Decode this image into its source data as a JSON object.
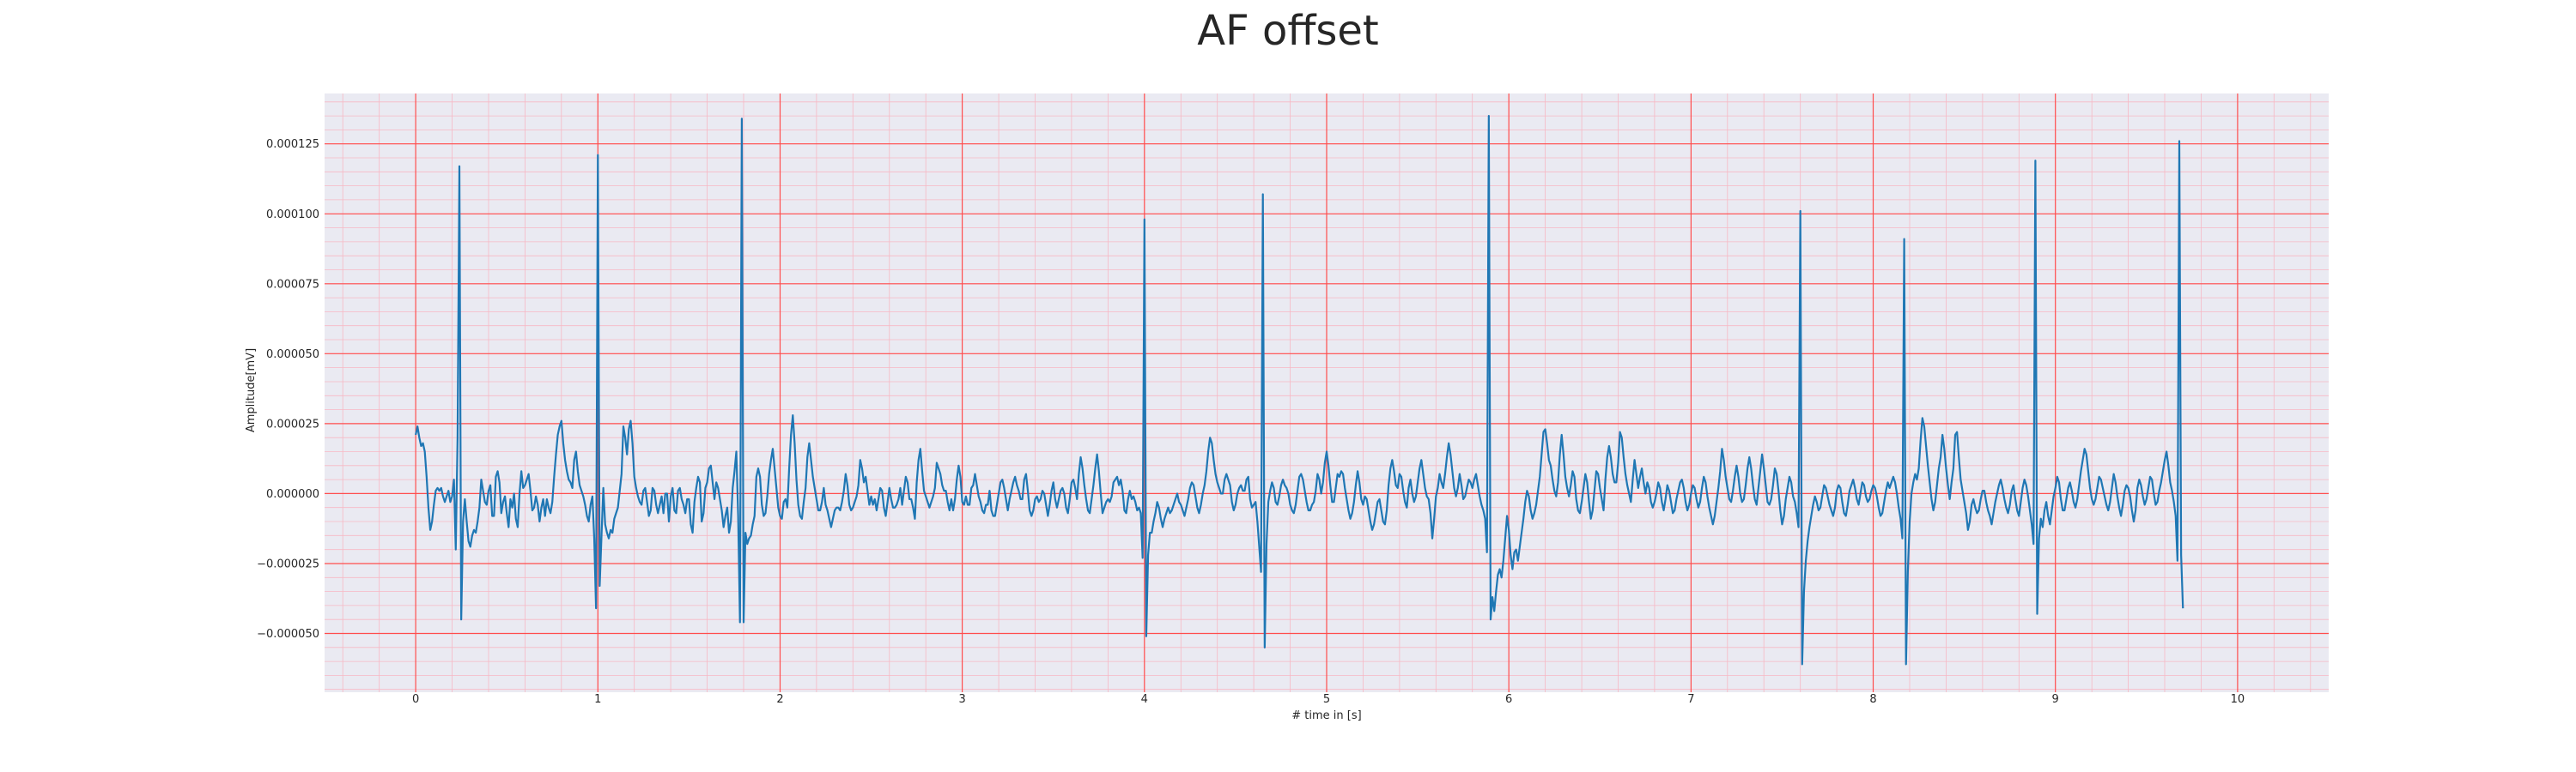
{
  "chart_data": {
    "type": "line",
    "title": "AF offset",
    "xlabel": "# time in [s]",
    "ylabel": "Amplitude[mV]",
    "xlim": [
      -0.5,
      10.5
    ],
    "ylim": [
      -7.1e-05,
      0.000143
    ],
    "x_ticks": [
      0,
      1,
      2,
      3,
      4,
      5,
      6,
      7,
      8,
      9,
      10
    ],
    "x_tick_labels": [
      "0",
      "1",
      "2",
      "3",
      "4",
      "5",
      "6",
      "7",
      "8",
      "9",
      "10"
    ],
    "y_ticks": [
      -5e-05,
      -2.5e-05,
      0.0,
      2.5e-05,
      5e-05,
      7.5e-05,
      0.0001,
      0.000125
    ],
    "y_tick_labels": [
      "−0.000050",
      "−0.000025",
      "0.000000",
      "0.000025",
      "0.000050",
      "0.000075",
      "0.000100",
      "0.000125"
    ],
    "grid": {
      "major": true,
      "minor": true,
      "major_x_step": 1.0,
      "minor_x_step": 0.2,
      "major_y_step": 2.5e-05,
      "minor_y_step": 5e-06
    },
    "colors": {
      "line": "#1f77b4",
      "plot_background": "#eaeaf2",
      "major_grid": "#ff4d4d",
      "minor_grid": "#f7b8c4"
    },
    "series": [
      {
        "sample_rate_hz": 100,
        "x_start": 0.0,
        "values": [
          2.1e-05,
          2.4e-05,
          2e-05,
          1.7e-05,
          1.8e-05,
          1.5e-05,
          6e-06,
          -5e-06,
          -1.3e-05,
          -1e-05,
          -4e-06,
          1e-06,
          2e-06,
          1e-06,
          2e-06,
          -1e-06,
          -3e-06,
          -1e-06,
          1e-06,
          -3e-06,
          -1e-06,
          5e-06,
          -2e-05,
          2e-05,
          0.000117,
          -4.5e-05,
          -1e-05,
          -2e-06,
          -1e-05,
          -1.7e-05,
          -1.9e-05,
          -1.5e-05,
          -1.3e-05,
          -1.4e-05,
          -1e-05,
          -5e-06,
          5e-06,
          1e-06,
          -3e-06,
          -4e-06,
          1e-06,
          3e-06,
          -8e-06,
          -8e-06,
          6e-06,
          8e-06,
          4e-06,
          -7e-06,
          -3e-06,
          -1e-06,
          -7e-06,
          -1.2e-05,
          -2e-06,
          -5e-06,
          0.0,
          -9e-06,
          -1.2e-05,
          0.0,
          8e-06,
          2e-06,
          3e-06,
          5e-06,
          7e-06,
          1e-06,
          -6e-06,
          -5e-06,
          -1e-06,
          -4e-06,
          -1e-05,
          -5e-06,
          -2e-06,
          -8e-06,
          -2e-06,
          -5e-06,
          -7e-06,
          -3e-06,
          6e-06,
          1.4e-05,
          2.1e-05,
          2.4e-05,
          2.6e-05,
          1.8e-05,
          1.2e-05,
          8e-06,
          5e-06,
          4e-06,
          2e-06,
          1.2e-05,
          1.5e-05,
          8e-06,
          3e-06,
          1e-06,
          -1e-06,
          -4e-06,
          -8e-06,
          -1e-05,
          -4e-06,
          -1e-06,
          -1.6e-05,
          -4.1e-05,
          0.000121,
          -3.3e-05,
          -1.5e-05,
          2e-06,
          -1.1e-05,
          -1.4e-05,
          -1.6e-05,
          -1.3e-05,
          -1.4e-05,
          -9e-06,
          -7e-06,
          -5e-06,
          1e-06,
          7e-06,
          2.4e-05,
          2e-05,
          1.4e-05,
          2.3e-05,
          2.6e-05,
          1.8e-05,
          6e-06,
          2e-06,
          -1e-06,
          -3e-06,
          -4e-06,
          1e-06,
          2e-06,
          -3e-06,
          -8e-06,
          -6e-06,
          2e-06,
          1e-06,
          -4e-06,
          -7e-06,
          -4e-06,
          -1e-06,
          -7e-06,
          0.0,
          0.0,
          -1e-05,
          -1e-06,
          2e-06,
          -6e-06,
          -7e-06,
          1e-06,
          2e-06,
          -2e-06,
          -4e-06,
          -7e-06,
          -2e-06,
          -2e-06,
          -1.1e-05,
          -1.4e-05,
          -3e-06,
          2e-06,
          6e-06,
          4e-06,
          -1e-05,
          -7e-06,
          2e-06,
          4e-06,
          9e-06,
          1e-05,
          4e-06,
          -2e-06,
          4e-06,
          2e-06,
          -2e-06,
          -6e-06,
          -1.2e-05,
          -8e-06,
          -5e-06,
          -1.4e-05,
          -1e-05,
          2e-06,
          8e-06,
          1.5e-05,
          -8e-06,
          -4.6e-05,
          0.000134,
          -4.6e-05,
          -1.4e-05,
          -1.8e-05,
          -1.6e-05,
          -1.5e-05,
          -1.1e-05,
          -8e-06,
          6e-06,
          9e-06,
          6e-06,
          -4e-06,
          -8e-06,
          -7e-06,
          -1e-06,
          7e-06,
          1.2e-05,
          1.6e-05,
          9e-06,
          2e-06,
          -5e-06,
          -8e-06,
          -9e-06,
          -3e-06,
          -2e-06,
          -5e-06,
          9e-06,
          2.1e-05,
          2.8e-05,
          1.8e-05,
          5e-06,
          -4e-06,
          -8e-06,
          -9e-06,
          -3e-06,
          2e-06,
          1.3e-05,
          1.8e-05,
          1.2e-05,
          6e-06,
          2e-06,
          -2e-06,
          -6e-06,
          -6e-06,
          -3e-06,
          2e-06,
          -4e-06,
          -6e-06,
          -9e-06,
          -1.2e-05,
          -9e-06,
          -6e-06,
          -5e-06,
          -5e-06,
          -6e-06,
          -3e-06,
          1e-06,
          7e-06,
          3e-06,
          -4e-06,
          -6e-06,
          -5e-06,
          -3e-06,
          -1e-06,
          3e-06,
          1.2e-05,
          9e-06,
          4e-06,
          6e-06,
          1e-06,
          -4e-06,
          -1e-06,
          -4e-06,
          -2e-06,
          -6e-06,
          -2e-06,
          2e-06,
          1e-06,
          -5e-06,
          -8e-06,
          -3e-06,
          2e-06,
          -2e-06,
          -5e-06,
          -5e-06,
          -4e-06,
          -2e-06,
          2e-06,
          -4e-06,
          1e-06,
          6e-06,
          4e-06,
          -2e-06,
          -2e-06,
          -5e-06,
          -9e-06,
          4e-06,
          1.2e-05,
          1.6e-05,
          8e-06,
          1e-06,
          -1e-06,
          -3e-06,
          -5e-06,
          -3e-06,
          -1e-06,
          2e-06,
          1.1e-05,
          9e-06,
          7e-06,
          3e-06,
          1e-06,
          1e-06,
          -3e-06,
          -6e-06,
          -2e-06,
          -6e-06,
          -2e-06,
          5e-06,
          1e-05,
          6e-06,
          -3e-06,
          -4e-06,
          -1e-06,
          -4e-06,
          -4e-06,
          2e-06,
          3e-06,
          7e-06,
          3e-06,
          -1e-06,
          -3e-06,
          -6e-06,
          -7e-06,
          -4e-06,
          -4e-06,
          1e-06,
          -6e-06,
          -8e-06,
          -8e-06,
          -4e-06,
          0.0,
          4e-06,
          5e-06,
          2e-06,
          -2e-06,
          -6e-06,
          -2e-06,
          1e-06,
          4e-06,
          6e-06,
          3e-06,
          1e-06,
          -2e-06,
          -2e-06,
          5e-06,
          7e-06,
          1e-06,
          -6e-06,
          -8e-06,
          -6e-06,
          -2e-06,
          -1e-06,
          -3e-06,
          -2e-06,
          1e-06,
          0.0,
          -4e-06,
          -8e-06,
          -4e-06,
          1e-06,
          4e-06,
          -2e-06,
          -5e-06,
          -2e-06,
          1e-06,
          2e-06,
          0.0,
          -5e-06,
          -7e-06,
          -2e-06,
          4e-06,
          5e-06,
          2e-06,
          -2e-06,
          7e-06,
          1.3e-05,
          9e-06,
          3e-06,
          -2e-06,
          -6e-06,
          -7e-06,
          -2e-06,
          3e-06,
          9e-06,
          1.4e-05,
          8e-06,
          0.0,
          -7e-06,
          -5e-06,
          -3e-06,
          -2e-06,
          -3e-06,
          -1e-06,
          4e-06,
          5e-06,
          6e-06,
          3e-06,
          5e-06,
          1e-06,
          -6e-06,
          -7e-06,
          -2e-06,
          1e-06,
          -2e-06,
          -1e-06,
          -3e-06,
          -6e-06,
          -5e-06,
          -7e-06,
          -2.3e-05,
          9.8e-05,
          -5.1e-05,
          -2.2e-05,
          -1.4e-05,
          -1.4e-05,
          -1e-05,
          -7e-06,
          -3e-06,
          -5e-06,
          -9e-06,
          -1.2e-05,
          -9e-06,
          -7e-06,
          -5e-06,
          -7e-06,
          -6e-06,
          -4e-06,
          -2e-06,
          0.0,
          -3e-06,
          -4e-06,
          -6e-06,
          -8e-06,
          -5e-06,
          -2e-06,
          2e-06,
          4e-06,
          3e-06,
          -1e-06,
          -5e-06,
          -7e-06,
          -4e-06,
          0.0,
          3e-06,
          8e-06,
          1.5e-05,
          2e-05,
          1.8e-05,
          1.2e-05,
          7e-06,
          4e-06,
          2e-06,
          0.0,
          0.0,
          5e-06,
          7e-06,
          5e-06,
          3e-06,
          -3e-06,
          -6e-06,
          -4e-06,
          0.0,
          2e-06,
          3e-06,
          1e-06,
          1e-06,
          5e-06,
          6e-06,
          -2e-06,
          -5e-06,
          -4e-06,
          -3e-06,
          -1e-05,
          -1.9e-05,
          -2.8e-05,
          0.000107,
          -5.5e-05,
          -1.8e-05,
          -3e-06,
          1e-06,
          4e-06,
          2e-06,
          -3e-06,
          -4e-06,
          -1e-06,
          3e-06,
          5e-06,
          3e-06,
          2e-06,
          0.0,
          -4e-06,
          -6e-06,
          -7e-06,
          -4e-06,
          1e-06,
          6e-06,
          7e-06,
          5e-06,
          1e-06,
          -3e-06,
          -6e-06,
          -6e-06,
          -4e-06,
          -3e-06,
          1e-06,
          7e-06,
          5e-06,
          0.0,
          4e-06,
          1.1e-05,
          1.5e-05,
          1e-05,
          3e-06,
          -3e-06,
          -3e-06,
          2e-06,
          7e-06,
          6e-06,
          8e-06,
          7e-06,
          2e-06,
          -2e-06,
          -6e-06,
          -9e-06,
          -7e-06,
          -3e-06,
          3e-06,
          8e-06,
          4e-06,
          -2e-06,
          -4e-06,
          -1e-06,
          -2e-06,
          -6e-06,
          -1e-05,
          -1.3e-05,
          -1.1e-05,
          -7e-06,
          -3e-06,
          -2e-06,
          -6e-06,
          -1e-05,
          -1.1e-05,
          -6e-06,
          3e-06,
          9e-06,
          1.2e-05,
          8e-06,
          3e-06,
          2e-06,
          7e-06,
          6e-06,
          1e-06,
          -3e-06,
          -5e-06,
          2e-06,
          5e-06,
          0.0,
          -3e-06,
          -1e-06,
          4e-06,
          9e-06,
          1.2e-05,
          7e-06,
          2e-06,
          -1e-06,
          -2e-06,
          -7e-06,
          -1.6e-05,
          -9e-06,
          -1e-06,
          2e-06,
          7e-06,
          4e-06,
          2e-06,
          7e-06,
          1.3e-05,
          1.8e-05,
          1.4e-05,
          8e-06,
          2e-06,
          -1e-06,
          2e-06,
          7e-06,
          3e-06,
          -2e-06,
          -1e-06,
          2e-06,
          5e-06,
          4e-06,
          2e-06,
          5e-06,
          7e-06,
          3e-06,
          -1e-06,
          -4e-06,
          -6e-06,
          -9e-06,
          -2.1e-05,
          0.000135,
          -4.5e-05,
          -3.7e-05,
          -4.2e-05,
          -3.5e-05,
          -2.9e-05,
          -2.7e-05,
          -3e-05,
          -2.4e-05,
          -1.6e-05,
          -8e-06,
          -1.3e-05,
          -2.2e-05,
          -2.7e-05,
          -2.1e-05,
          -2e-05,
          -2.4e-05,
          -1.9e-05,
          -1.4e-05,
          -9e-06,
          -3e-06,
          1e-06,
          -1e-06,
          -6e-06,
          -9e-06,
          -7e-06,
          -4e-06,
          1e-06,
          6e-06,
          1.4e-05,
          2.2e-05,
          2.3e-05,
          1.8e-05,
          1.2e-05,
          1e-05,
          5e-06,
          1e-06,
          -1e-06,
          4e-06,
          1.4e-05,
          2.1e-05,
          1.4e-05,
          6e-06,
          2e-06,
          -1e-06,
          3e-06,
          8e-06,
          6e-06,
          -2e-06,
          -6e-06,
          -7e-06,
          -3e-06,
          2e-06,
          7e-06,
          4e-06,
          -3e-06,
          -9e-06,
          -6e-06,
          1e-06,
          8e-06,
          7e-06,
          2e-06,
          -2e-06,
          -6e-06,
          5e-06,
          1.3e-05,
          1.7e-05,
          1.3e-05,
          7e-06,
          4e-06,
          4e-06,
          1.1e-05,
          2.2e-05,
          2e-05,
          1.3e-05,
          7e-06,
          3e-06,
          0.0,
          -3e-06,
          5e-06,
          1.2e-05,
          7e-06,
          2e-06,
          6e-06,
          9e-06,
          4e-06,
          0.0,
          4e-06,
          2e-06,
          -3e-06,
          -5e-06,
          -3e-06,
          0.0,
          4e-06,
          2e-06,
          -3e-06,
          -6e-06,
          -2e-06,
          3e-06,
          1e-06,
          -3e-06,
          -7e-06,
          -6e-06,
          -2e-06,
          1e-06,
          4e-06,
          5e-06,
          2e-06,
          -3e-06,
          -6e-06,
          -4e-06,
          0.0,
          3e-06,
          2e-06,
          -2e-06,
          -5e-06,
          -3e-06,
          2e-06,
          6e-06,
          4e-06,
          -1e-06,
          -5e-06,
          -8e-06,
          -1.1e-05,
          -8e-06,
          -3e-06,
          2e-06,
          8e-06,
          1.6e-05,
          1.2e-05,
          6e-06,
          2e-06,
          -2e-06,
          -3e-06,
          1e-06,
          6e-06,
          1e-05,
          6e-06,
          0.0,
          -3e-06,
          -2e-06,
          3e-06,
          9e-06,
          1.3e-05,
          9e-06,
          3e-06,
          -2e-06,
          -4e-06,
          2e-06,
          8e-06,
          1.4e-05,
          9e-06,
          3e-06,
          -3e-06,
          -4e-06,
          -2e-06,
          3e-06,
          9e-06,
          7e-06,
          1e-06,
          -6e-06,
          -1.1e-05,
          -8e-06,
          -2e-06,
          2e-06,
          6e-06,
          4e-06,
          -1e-06,
          -3e-06,
          -7e-06,
          -1.2e-05,
          0.000101,
          -6.1e-05,
          -3.5e-05,
          -2.4e-05,
          -1.7e-05,
          -1.2e-05,
          -8e-06,
          -4e-06,
          -1e-06,
          -3e-06,
          -6e-06,
          -5e-06,
          -1e-06,
          3e-06,
          2e-06,
          -1e-06,
          -4e-06,
          -6e-06,
          -8e-06,
          -5e-06,
          1e-06,
          3e-06,
          2e-06,
          -3e-06,
          -7e-06,
          -8e-06,
          -4e-06,
          1e-06,
          3e-06,
          5e-06,
          2e-06,
          -2e-06,
          -4e-06,
          0.0,
          4e-06,
          3e-06,
          -1e-06,
          -3e-06,
          -2e-06,
          1e-06,
          3e-06,
          2e-06,
          -1e-06,
          -5e-06,
          -8e-06,
          -7e-06,
          -3e-06,
          1e-06,
          4e-06,
          2e-06,
          4e-06,
          6e-06,
          4e-06,
          0.0,
          -5e-06,
          -9e-06,
          -1.6e-05,
          9.1e-05,
          -6.1e-05,
          -2.8e-05,
          -1e-05,
          0.0,
          4e-06,
          7e-06,
          5e-06,
          9e-06,
          1.9e-05,
          2.7e-05,
          2.4e-05,
          1.7e-05,
          1e-05,
          4e-06,
          -2e-06,
          -6e-06,
          -3e-06,
          3e-06,
          9e-06,
          1.3e-05,
          2.1e-05,
          1.6e-05,
          9e-06,
          3e-06,
          -2e-06,
          4e-06,
          9e-06,
          2.1e-05,
          2.2e-05,
          1.3e-05,
          5e-06,
          1e-06,
          -3e-06,
          -7e-06,
          -1.3e-05,
          -1e-05,
          -4e-06,
          -2e-06,
          -5e-06,
          -7e-06,
          -6e-06,
          -2e-06,
          1e-06,
          1e-06,
          -3e-06,
          -6e-06,
          -8e-06,
          -1.1e-05,
          -7e-06,
          -3e-06,
          0.0,
          3e-06,
          5e-06,
          2e-06,
          -2e-06,
          -5e-06,
          -7e-06,
          -4e-06,
          1e-06,
          3e-06,
          -2e-06,
          -6e-06,
          -8e-06,
          -3e-06,
          2e-06,
          5e-06,
          3e-06,
          -1e-06,
          -6e-06,
          -1.1e-05,
          -1.8e-05,
          0.000119,
          -4.3e-05,
          -1.6e-05,
          -9e-06,
          -1.2e-05,
          -6e-06,
          -3e-06,
          -8e-06,
          -1.1e-05,
          -6e-06,
          -1e-06,
          2e-06,
          6e-06,
          4e-06,
          -2e-06,
          -6e-06,
          -6e-06,
          -2e-06,
          2e-06,
          4e-06,
          1e-06,
          -3e-06,
          -5e-06,
          -2e-06,
          3e-06,
          8e-06,
          1.2e-05,
          1.6e-05,
          1.4e-05,
          8e-06,
          2e-06,
          -2e-06,
          -4e-06,
          -2e-06,
          2e-06,
          6e-06,
          5e-06,
          2e-06,
          -1e-06,
          -4e-06,
          -6e-06,
          -3e-06,
          2e-06,
          7e-06,
          4e-06,
          -1e-06,
          -5e-06,
          -8e-06,
          -4e-06,
          1e-06,
          3e-06,
          2e-06,
          -1e-06,
          -6e-06,
          -1e-05,
          -6e-06,
          2e-06,
          5e-06,
          3e-06,
          -1e-06,
          -4e-06,
          -2e-06,
          2e-06,
          6e-06,
          5e-06,
          0.0,
          -4e-06,
          -3e-06,
          1e-06,
          4e-06,
          8e-06,
          1.2e-05,
          1.5e-05,
          1e-05,
          4e-06,
          1e-06,
          -3e-06,
          -8e-06,
          -2.4e-05,
          0.000126,
          -2.2e-05,
          -4.1e-05
        ]
      }
    ]
  }
}
